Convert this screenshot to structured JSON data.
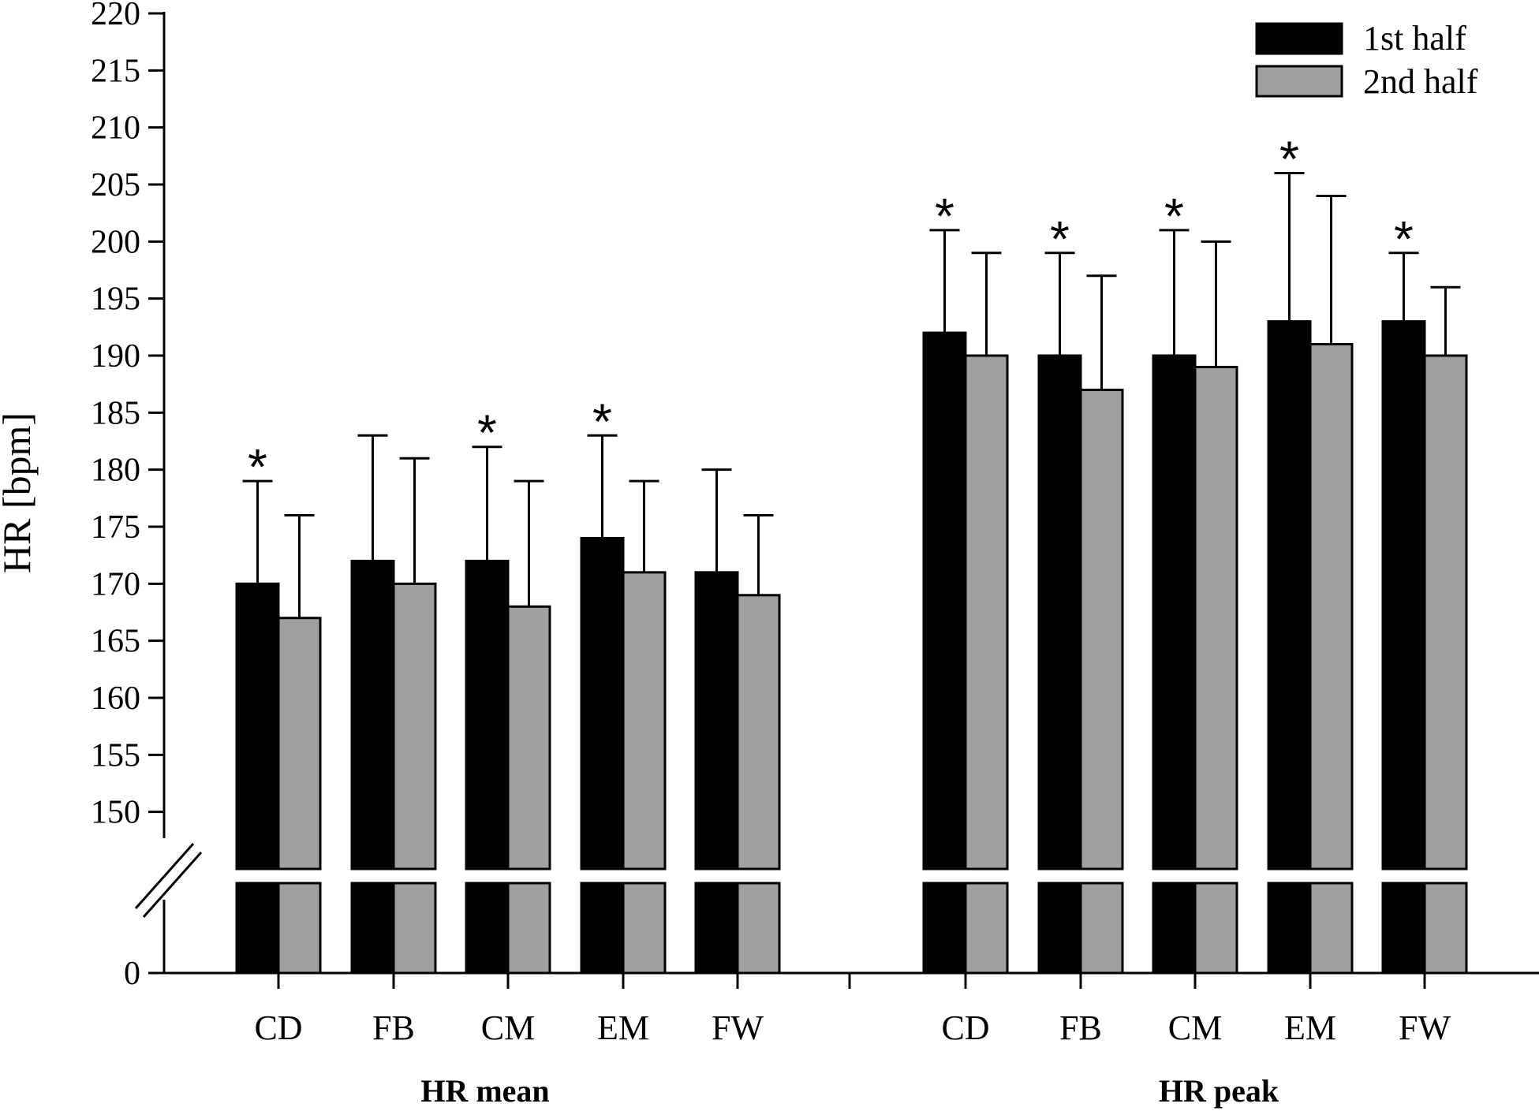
{
  "chart_data": {
    "type": "bar",
    "ylabel": "HR [bpm]",
    "yticks": [
      0,
      150,
      155,
      160,
      165,
      170,
      175,
      180,
      185,
      190,
      195,
      200,
      205,
      210,
      215,
      220
    ],
    "ylim": [
      145,
      220
    ],
    "axis_break": true,
    "legend": {
      "placement": "top-right"
    },
    "series": [
      {
        "name": "1st half",
        "color": "#000000"
      },
      {
        "name": "2nd half",
        "color": "#a0a0a0"
      }
    ],
    "significance_marker": "*",
    "groups": [
      {
        "label": "HR mean",
        "categories": [
          "CD",
          "FB",
          "CM",
          "EM",
          "FW"
        ],
        "first_half": [
          170,
          172,
          172,
          174,
          171
        ],
        "first_half_sd": [
          9,
          11,
          10,
          9,
          9
        ],
        "second_half": [
          167,
          170,
          168,
          171,
          169
        ],
        "second_half_sd": [
          9,
          11,
          11,
          8,
          7
        ],
        "significant": [
          true,
          false,
          true,
          true,
          false
        ]
      },
      {
        "label": "HR peak",
        "categories": [
          "CD",
          "FB",
          "CM",
          "EM",
          "FW"
        ],
        "first_half": [
          192,
          190,
          190,
          193,
          193
        ],
        "first_half_sd": [
          9,
          9,
          11,
          13,
          6
        ],
        "second_half": [
          190,
          187,
          189,
          191,
          190
        ],
        "second_half_sd": [
          9,
          10,
          11,
          13,
          6
        ],
        "significant": [
          true,
          true,
          true,
          true,
          true
        ]
      }
    ]
  }
}
